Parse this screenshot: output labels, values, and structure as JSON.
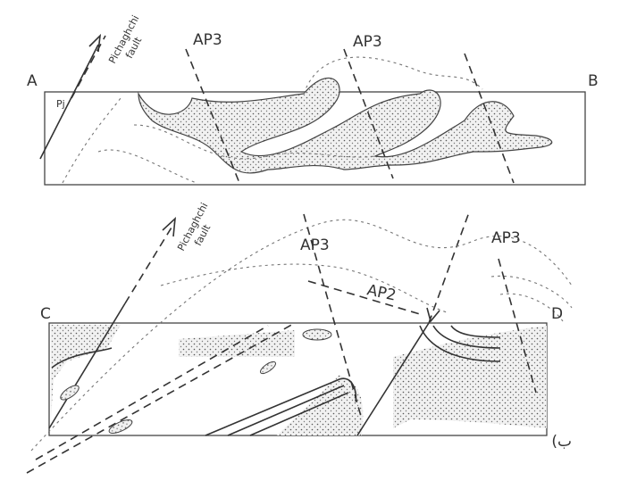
{
  "sections": [
    {
      "left_label": "A",
      "right_label": "B",
      "fault": {
        "line1": "Pichaghchi",
        "line2": "fault"
      },
      "axial_planes": [
        "AP3",
        "AP3"
      ],
      "unit": "Pj"
    },
    {
      "left_label": "C",
      "right_label": "D",
      "fault": {
        "line1": "Pichaghchi",
        "line2": "fault"
      },
      "axial_planes": [
        "AP3",
        "AP3",
        "AP2"
      ]
    }
  ],
  "caption": "ب)"
}
